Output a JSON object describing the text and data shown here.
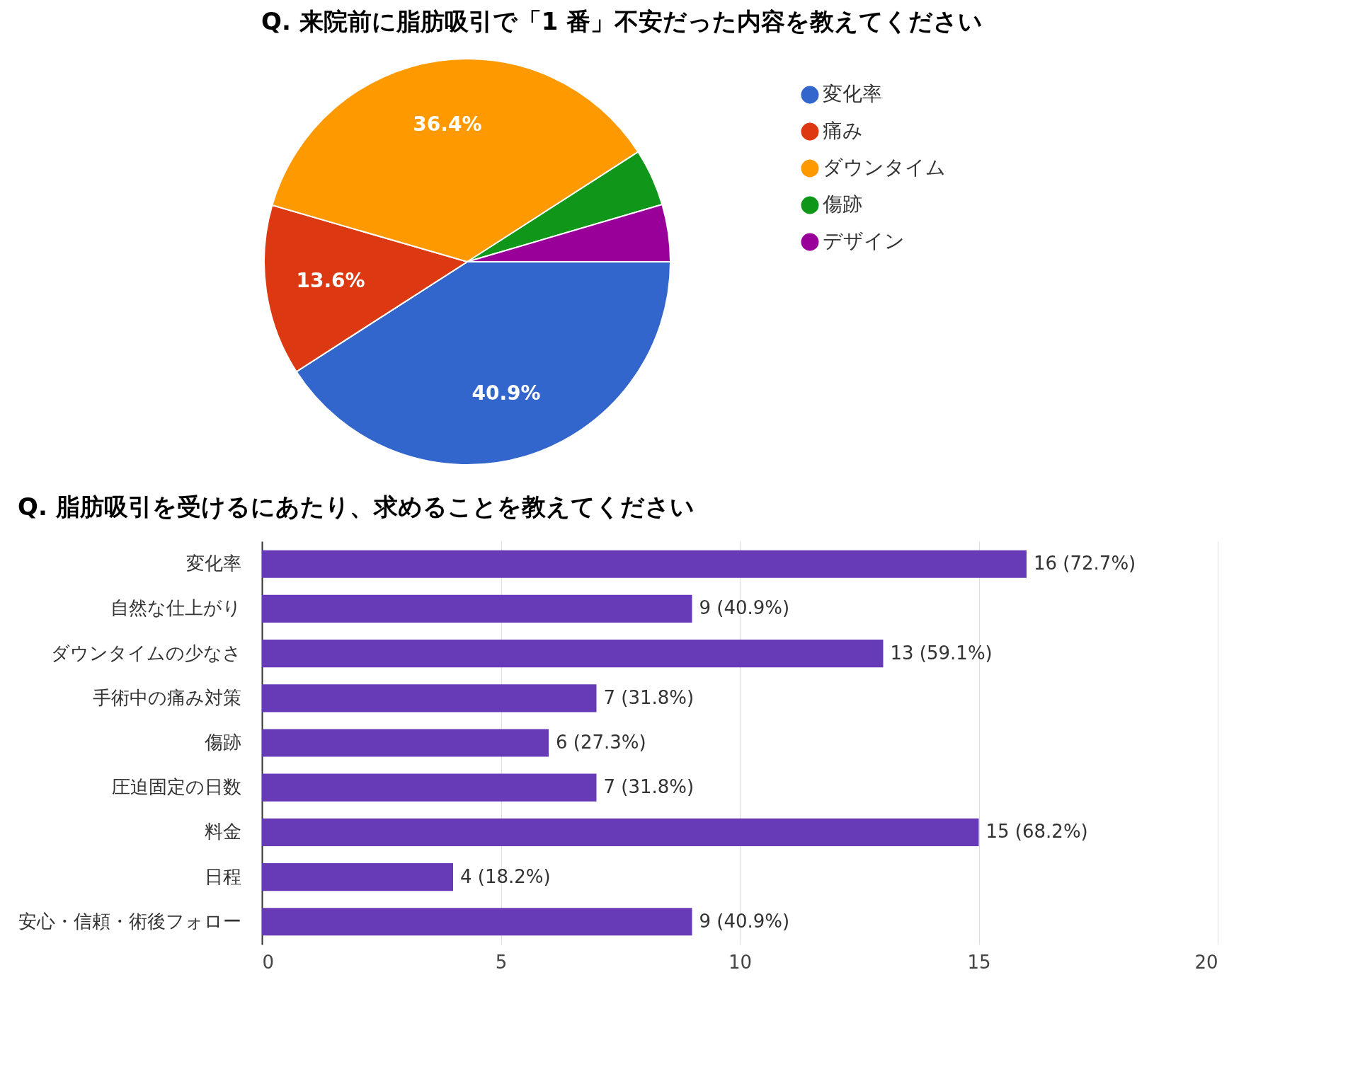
{
  "chart_data": [
    {
      "type": "pie",
      "title": "Q. 来院前に脂肪吸引で「1 番」不安だった内容を教えてください",
      "categories": [
        "変化率",
        "痛み",
        "ダウンタイム",
        "傷跡",
        "デザイン"
      ],
      "values": [
        40.9,
        13.6,
        36.4,
        4.55,
        4.55
      ],
      "colors": [
        "#3366cc",
        "#dc3912",
        "#ff9900",
        "#109618",
        "#990099"
      ],
      "value_labels": [
        "40.9%",
        "13.6%",
        "36.4%",
        null,
        null
      ],
      "legend": "right"
    },
    {
      "type": "bar",
      "orientation": "horizontal",
      "title": "Q. 脂肪吸引を受けるにあたり、求めることを教えてください",
      "categories": [
        "変化率",
        "自然な仕上がり",
        "ダウンタイムの少なさ",
        "手術中の痛み対策",
        "傷跡",
        "圧迫固定の日数",
        "料金",
        "日程",
        "安心・信頼・術後フォロー"
      ],
      "values": [
        16,
        9,
        13,
        7,
        6,
        7,
        15,
        4,
        9
      ],
      "color": "#673ab7",
      "xlim": [
        0,
        20
      ],
      "xticks": [
        0,
        5,
        10,
        15,
        20
      ],
      "grid": "x",
      "value_labels": [
        "16 (72.7%)",
        "9 (40.9%)",
        "13 (59.1%)",
        "7 (31.8%)",
        "6 (27.3%)",
        "7 (31.8%)",
        "15 (68.2%)",
        "4 (18.2%)",
        "9 (40.9%)"
      ]
    }
  ]
}
